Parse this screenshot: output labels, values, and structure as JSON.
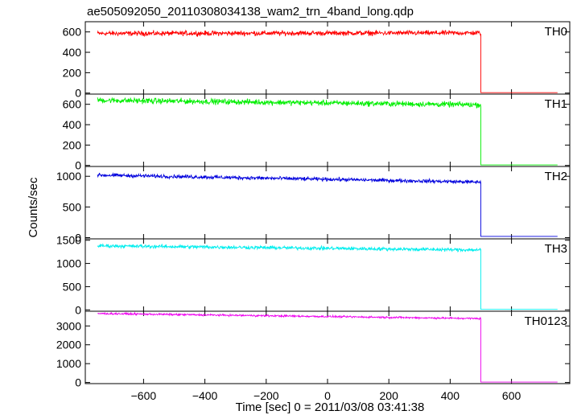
{
  "chart_data": {
    "type": "line",
    "title": "ae505092050_20110308034138_wam2_trn_4band_long.qdp",
    "xlabel": "Time [sec] 0 = 2011/03/08 03:41:38",
    "ylabel": "Counts/sec",
    "xlim": [
      -790,
      790
    ],
    "x_ticks": [
      -600,
      -400,
      -200,
      0,
      200,
      400,
      600
    ],
    "data_x_range": [
      -750,
      750
    ],
    "drop_time": 500,
    "panels": [
      {
        "name": "TH0",
        "color": "#ff0000",
        "ylim": [
          -10,
          700
        ],
        "y_ticks": [
          0,
          200,
          400,
          600
        ],
        "level_start": 585,
        "level_end": 590,
        "noise": 22,
        "after_level": 4
      },
      {
        "name": "TH1",
        "color": "#00ee00",
        "ylim": [
          -10,
          700
        ],
        "y_ticks": [
          0,
          200,
          400,
          600
        ],
        "level_start": 640,
        "level_end": 595,
        "noise": 25,
        "after_level": 5
      },
      {
        "name": "TH2",
        "color": "#0000dd",
        "ylim": [
          -20,
          1160
        ],
        "y_ticks": [
          0,
          500,
          1000
        ],
        "level_start": 1020,
        "level_end": 905,
        "noise": 28,
        "after_level": 20
      },
      {
        "name": "TH3",
        "color": "#00eeee",
        "ylim": [
          -30,
          1530
        ],
        "y_ticks": [
          0,
          500,
          1000,
          1500
        ],
        "level_start": 1380,
        "level_end": 1290,
        "noise": 35,
        "after_level": 10
      },
      {
        "name": "TH0123",
        "color": "#ee00ee",
        "ylim": [
          -60,
          3780
        ],
        "y_ticks": [
          0,
          1000,
          2000,
          3000
        ],
        "level_start": 3660,
        "level_end": 3390,
        "noise": 45,
        "after_level": 20
      }
    ]
  }
}
